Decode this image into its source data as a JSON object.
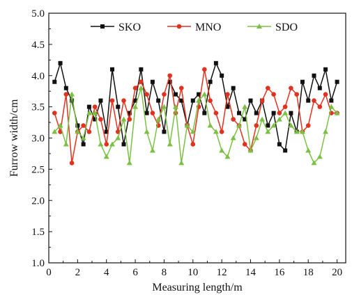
{
  "chart_data": {
    "type": "line",
    "xlabel": "Measuring length/m",
    "ylabel": "Furrow width/cm",
    "xlim": [
      0,
      20.6
    ],
    "ylim": [
      1.0,
      5.0
    ],
    "xticks": [
      0,
      2,
      4,
      6,
      8,
      10,
      12,
      14,
      16,
      18,
      20
    ],
    "yticks": [
      1.0,
      1.5,
      2.0,
      2.5,
      3.0,
      3.5,
      4.0,
      4.5,
      5.0
    ],
    "x": [
      0.4,
      0.8,
      1.2,
      1.6,
      2.0,
      2.4,
      2.8,
      3.2,
      3.6,
      4.0,
      4.4,
      4.8,
      5.2,
      5.6,
      6.0,
      6.4,
      6.8,
      7.2,
      7.6,
      8.0,
      8.4,
      8.8,
      9.2,
      9.6,
      10.0,
      10.4,
      10.8,
      11.2,
      11.6,
      12.0,
      12.4,
      12.8,
      13.2,
      13.6,
      14.0,
      14.4,
      14.8,
      15.2,
      15.6,
      16.0,
      16.4,
      16.8,
      17.2,
      17.6,
      18.0,
      18.4,
      18.8,
      19.2,
      19.6,
      20.0
    ],
    "series": [
      {
        "name": "SKO",
        "color": "#111111",
        "marker": "square",
        "values": [
          3.9,
          4.2,
          3.8,
          3.6,
          3.2,
          2.9,
          3.5,
          3.3,
          3.6,
          3.1,
          4.1,
          3.5,
          2.9,
          3.4,
          3.6,
          4.1,
          3.4,
          3.9,
          3.6,
          3.1,
          3.9,
          3.7,
          3.6,
          3.2,
          3.6,
          3.7,
          3.4,
          3.9,
          4.2,
          4.0,
          3.5,
          3.8,
          3.4,
          3.3,
          3.6,
          3.4,
          3.6,
          3.2,
          3.4,
          2.9,
          2.8,
          3.4,
          3.1,
          3.9,
          3.6,
          4.0,
          3.8,
          4.1,
          3.6,
          3.9
        ]
      },
      {
        "name": "MNO",
        "color": "#e0321e",
        "marker": "circle",
        "values": [
          3.4,
          3.1,
          3.7,
          2.6,
          3.1,
          3.2,
          3.1,
          3.5,
          3.3,
          2.9,
          3.6,
          3.1,
          3.6,
          3.3,
          3.8,
          3.9,
          3.7,
          3.4,
          3.2,
          3.7,
          4.0,
          3.4,
          3.8,
          3.2,
          2.9,
          3.5,
          4.1,
          3.6,
          3.4,
          3.1,
          3.7,
          3.3,
          3.2,
          2.9,
          2.8,
          3.2,
          3.6,
          3.8,
          3.7,
          3.4,
          3.5,
          3.8,
          3.7,
          3.1,
          3.2,
          3.6,
          3.5,
          3.7,
          3.4,
          3.4
        ]
      },
      {
        "name": "SDO",
        "color": "#7bc043",
        "marker": "triangle",
        "values": [
          3.1,
          3.2,
          2.9,
          3.7,
          3.1,
          3.0,
          3.4,
          3.4,
          2.9,
          2.7,
          2.9,
          3.0,
          3.3,
          2.6,
          3.5,
          3.8,
          3.1,
          2.8,
          3.3,
          3.5,
          2.9,
          3.5,
          2.6,
          3.2,
          3.1,
          3.6,
          3.7,
          3.2,
          3.1,
          2.8,
          2.7,
          3.0,
          3.2,
          3.5,
          2.8,
          3.0,
          3.3,
          3.1,
          3.2,
          3.3,
          3.4,
          3.2,
          3.1,
          3.1,
          2.8,
          2.6,
          2.7,
          3.1,
          3.5,
          3.4
        ]
      }
    ],
    "legend_position": "top"
  }
}
